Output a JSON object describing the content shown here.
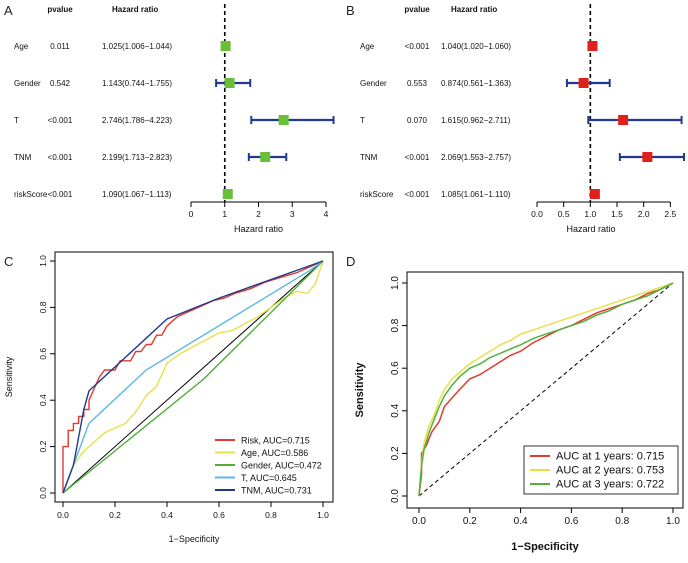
{
  "chart_data": [
    {
      "panel": "A",
      "type": "forest",
      "headers": {
        "pvalue": "pvalue",
        "hr": "Hazard ratio"
      },
      "xlabel": "Hazard ratio",
      "xlim": [
        0,
        4
      ],
      "xticks": [
        0,
        1,
        2,
        3,
        4
      ],
      "ref_line": 1,
      "marker_color": "#6abf3a",
      "ci_color": "#1f3a8f",
      "rows": [
        {
          "label": "Age",
          "pvalue": "0.011",
          "hr_text": "1.025(1.006−1.044)",
          "hr": 1.025,
          "lo": 1.006,
          "hi": 1.044
        },
        {
          "label": "Gender",
          "pvalue": "0.542",
          "hr_text": "1.143(0.744−1.755)",
          "hr": 1.143,
          "lo": 0.744,
          "hi": 1.755
        },
        {
          "label": "T",
          "pvalue": "<0.001",
          "hr_text": "2.746(1.786−4.223)",
          "hr": 2.746,
          "lo": 1.786,
          "hi": 4.223
        },
        {
          "label": "TNM",
          "pvalue": "<0.001",
          "hr_text": "2.199(1.713−2.823)",
          "hr": 2.199,
          "lo": 1.713,
          "hi": 2.823
        },
        {
          "label": "riskScore",
          "pvalue": "<0.001",
          "hr_text": "1.090(1.067−1.113)",
          "hr": 1.09,
          "lo": 1.067,
          "hi": 1.113
        }
      ]
    },
    {
      "panel": "B",
      "type": "forest",
      "headers": {
        "pvalue": "pvalue",
        "hr": "Hazard ratio"
      },
      "xlabel": "Hazard ratio",
      "xlim": [
        0,
        2.7
      ],
      "xticks": [
        0.0,
        0.5,
        1.0,
        1.5,
        2.0,
        2.5
      ],
      "xtick_labels": [
        "0.0",
        "0.5",
        "1.0",
        "1.5",
        "2.0",
        "2.5"
      ],
      "ref_line": 1,
      "marker_color": "#e0201b",
      "ci_color": "#1f3a8f",
      "rows": [
        {
          "label": "Age",
          "pvalue": "<0.001",
          "hr_text": "1.040(1.020−1.060)",
          "hr": 1.04,
          "lo": 1.02,
          "hi": 1.06
        },
        {
          "label": "Gender",
          "pvalue": "0.553",
          "hr_text": "0.874(0.561−1.363)",
          "hr": 0.874,
          "lo": 0.561,
          "hi": 1.363
        },
        {
          "label": "T",
          "pvalue": "0.070",
          "hr_text": "1.615(0.962−2.711)",
          "hr": 1.615,
          "lo": 0.962,
          "hi": 2.711
        },
        {
          "label": "TNM",
          "pvalue": "<0.001",
          "hr_text": "2.069(1.553−2.757)",
          "hr": 2.069,
          "lo": 1.553,
          "hi": 2.757
        },
        {
          "label": "riskScore",
          "pvalue": "<0.001",
          "hr_text": "1.085(1.061−1.110)",
          "hr": 1.085,
          "lo": 1.061,
          "hi": 1.11
        }
      ]
    },
    {
      "panel": "C",
      "type": "line",
      "xlabel": "1−Specificity",
      "ylabel": "Sensitivity",
      "xlim": [
        0,
        1
      ],
      "ylim": [
        0,
        1
      ],
      "ticks": [
        "0.0",
        "0.2",
        "0.4",
        "0.6",
        "0.8",
        "1.0"
      ],
      "legend_position": "bottom-right",
      "series": [
        {
          "name": "Risk, AUC=0.715",
          "color": "#e23b2e",
          "x": [
            0,
            0,
            0.02,
            0.02,
            0.04,
            0.04,
            0.06,
            0.06,
            0.08,
            0.08,
            0.1,
            0.1,
            0.12,
            0.14,
            0.16,
            0.2,
            0.22,
            0.26,
            0.28,
            0.3,
            0.32,
            0.34,
            0.36,
            0.38,
            0.4,
            0.42,
            0.44,
            0.46,
            0.5,
            0.54,
            0.58,
            0.62,
            0.66,
            0.72,
            0.78,
            0.84,
            0.9,
            0.96,
            1
          ],
          "y": [
            0,
            0.2,
            0.2,
            0.27,
            0.27,
            0.3,
            0.3,
            0.33,
            0.33,
            0.36,
            0.36,
            0.4,
            0.45,
            0.5,
            0.53,
            0.53,
            0.57,
            0.57,
            0.61,
            0.61,
            0.64,
            0.64,
            0.68,
            0.68,
            0.72,
            0.74,
            0.76,
            0.77,
            0.79,
            0.81,
            0.83,
            0.84,
            0.86,
            0.88,
            0.91,
            0.93,
            0.95,
            0.98,
            1.0
          ]
        },
        {
          "name": "Age, AUC=0.586",
          "color": "#e8e04a",
          "x": [
            0,
            0.04,
            0.08,
            0.12,
            0.16,
            0.2,
            0.24,
            0.28,
            0.32,
            0.36,
            0.4,
            0.45,
            0.5,
            0.55,
            0.6,
            0.65,
            0.7,
            0.75,
            0.8,
            0.85,
            0.9,
            0.94,
            0.97,
            1
          ],
          "y": [
            0,
            0.12,
            0.18,
            0.22,
            0.26,
            0.28,
            0.3,
            0.35,
            0.42,
            0.46,
            0.56,
            0.6,
            0.63,
            0.66,
            0.69,
            0.7,
            0.73,
            0.76,
            0.8,
            0.84,
            0.87,
            0.86,
            0.9,
            1.0
          ]
        },
        {
          "name": "Gender, AUC=0.472",
          "color": "#4fb33b",
          "x": [
            0,
            0.54,
            1
          ],
          "y": [
            0,
            0.49,
            1
          ]
        },
        {
          "name": "T, AUC=0.645",
          "color": "#5ab7e6",
          "x": [
            0,
            0.1,
            0.32,
            0.95,
            1
          ],
          "y": [
            0,
            0.3,
            0.53,
            0.96,
            1
          ]
        },
        {
          "name": "TNM, AUC=0.731",
          "color": "#1f3a8f",
          "x": [
            0,
            0.04,
            0.08,
            0.1,
            0.4,
            0.6,
            1
          ],
          "y": [
            0,
            0.12,
            0.36,
            0.44,
            0.75,
            0.84,
            1
          ]
        }
      ]
    },
    {
      "panel": "D",
      "type": "line",
      "xlabel": "1−Specificity",
      "ylabel": "Sensitivity",
      "xlim": [
        0,
        1
      ],
      "ylim": [
        0,
        1
      ],
      "ticks": [
        "0.0",
        "0.2",
        "0.4",
        "0.6",
        "0.8",
        "1.0"
      ],
      "legend_position": "bottom-right",
      "series": [
        {
          "name": "AUC at 1 years: 0.715",
          "color": "#e23b2e",
          "x": [
            0,
            0.01,
            0.01,
            0.03,
            0.05,
            0.08,
            0.1,
            0.13,
            0.16,
            0.2,
            0.24,
            0.28,
            0.32,
            0.36,
            0.4,
            0.45,
            0.5,
            0.55,
            0.6,
            0.65,
            0.7,
            0.75,
            0.8,
            0.85,
            0.9,
            0.95,
            1
          ],
          "y": [
            0,
            0.1,
            0.2,
            0.24,
            0.3,
            0.35,
            0.42,
            0.46,
            0.5,
            0.55,
            0.57,
            0.6,
            0.63,
            0.66,
            0.68,
            0.72,
            0.75,
            0.78,
            0.8,
            0.83,
            0.86,
            0.88,
            0.9,
            0.92,
            0.95,
            0.97,
            1
          ]
        },
        {
          "name": "AUC at 2 years: 0.753",
          "color": "#e8e04a",
          "x": [
            0,
            0.01,
            0.02,
            0.04,
            0.06,
            0.08,
            0.1,
            0.13,
            0.16,
            0.2,
            0.24,
            0.28,
            0.32,
            0.36,
            0.4,
            0.45,
            0.5,
            0.55,
            0.6,
            0.65,
            0.7,
            0.75,
            0.8,
            0.85,
            0.9,
            0.95,
            1
          ],
          "y": [
            0,
            0.15,
            0.25,
            0.33,
            0.38,
            0.45,
            0.5,
            0.55,
            0.58,
            0.62,
            0.65,
            0.68,
            0.71,
            0.73,
            0.76,
            0.78,
            0.8,
            0.82,
            0.84,
            0.86,
            0.88,
            0.9,
            0.92,
            0.94,
            0.96,
            0.98,
            1
          ]
        },
        {
          "name": "AUC at 3 years: 0.722",
          "color": "#4fb33b",
          "x": [
            0,
            0.01,
            0.02,
            0.04,
            0.06,
            0.08,
            0.1,
            0.13,
            0.16,
            0.2,
            0.24,
            0.28,
            0.32,
            0.36,
            0.4,
            0.45,
            0.5,
            0.55,
            0.6,
            0.65,
            0.7,
            0.75,
            0.8,
            0.85,
            0.9,
            0.95,
            1
          ],
          "y": [
            0,
            0.14,
            0.22,
            0.3,
            0.36,
            0.42,
            0.47,
            0.52,
            0.56,
            0.6,
            0.62,
            0.65,
            0.67,
            0.69,
            0.71,
            0.74,
            0.76,
            0.78,
            0.8,
            0.82,
            0.85,
            0.87,
            0.9,
            0.92,
            0.94,
            0.97,
            1
          ]
        }
      ]
    }
  ],
  "panels": {
    "a": "A",
    "b": "B",
    "c": "C",
    "d": "D"
  }
}
